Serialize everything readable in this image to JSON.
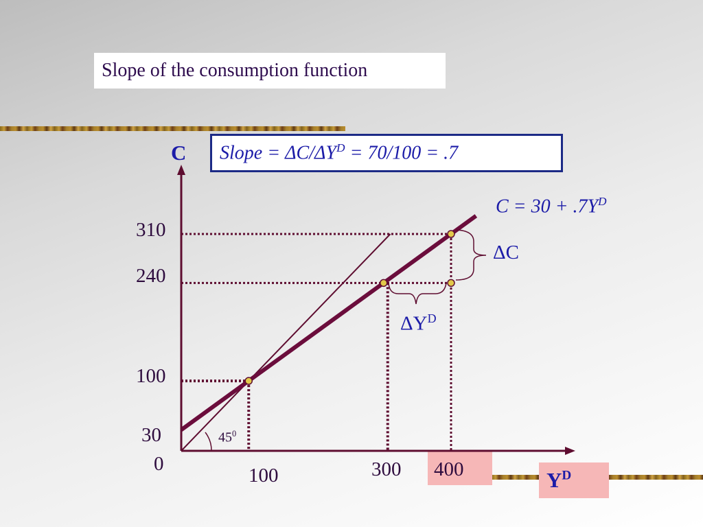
{
  "title": "Slope of the consumption function",
  "slope_formula": "Slope = ΔC/ΔY",
  "slope_sup": "D",
  "slope_result": " = 70/100 = .7",
  "equation": "C = 30 + .7Y",
  "equation_sup": "D",
  "y_axis_label": "C",
  "x_axis_label": "Y",
  "x_axis_label_sup": "D",
  "y_ticks": [
    "310",
    "240",
    "100",
    "30"
  ],
  "x_ticks": [
    "100",
    "300",
    "400"
  ],
  "origin_label": "0",
  "delta_c_label": "ΔC",
  "delta_y_label": "ΔY",
  "delta_y_sup": "D",
  "angle_label": "45",
  "angle_sup": "0",
  "colors": {
    "axis": "#5e0d30",
    "consumption_line": "#6b0d3c",
    "guide_line": "#5e0d30",
    "point_fill": "#e2c94a",
    "slope_box_border": "#1c2a86",
    "highlight_box": "#f6b7b7"
  },
  "chart_data": {
    "type": "line",
    "series": [
      {
        "name": "C = 30 + .7YD",
        "x": [
          0,
          400
        ],
        "y": [
          30,
          310
        ]
      },
      {
        "x": [
          0,
          310
        ],
        "y": [
          0,
          310
        ]
      }
    ],
    "points": [
      {
        "x": 100,
        "y": 100
      },
      {
        "x": 300,
        "y": 240
      },
      {
        "x": 400,
        "y": 310
      },
      {
        "x": 400,
        "y": 240
      }
    ],
    "xlim": [
      0,
      430
    ],
    "ylim": [
      0,
      330
    ]
  }
}
